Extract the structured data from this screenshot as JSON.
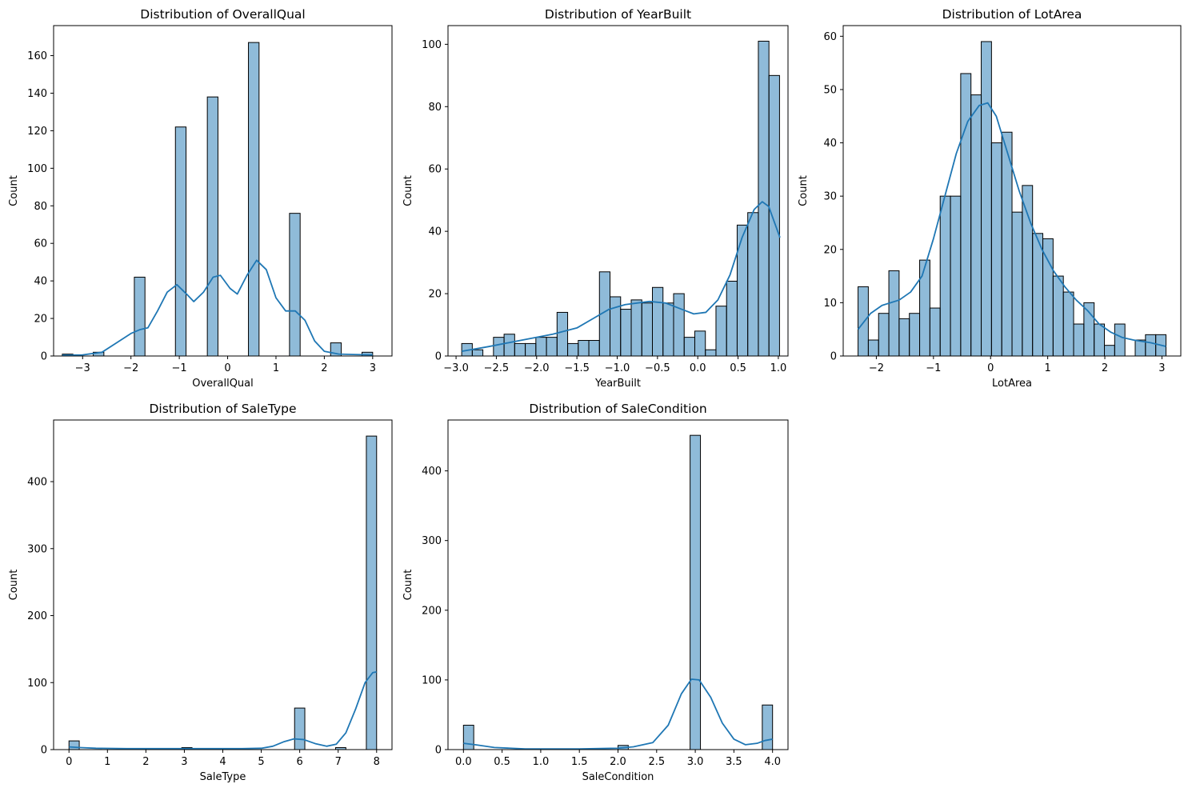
{
  "chart_data": [
    {
      "type": "bar",
      "title": "Distribution of OverallQual",
      "xlabel": "OverallQual",
      "ylabel": "Count",
      "xlim": [
        -3.6,
        3.4
      ],
      "ylim": [
        0,
        176
      ],
      "xticks": [
        -3,
        -2,
        -1,
        0,
        1,
        2,
        3
      ],
      "yticks": [
        0,
        20,
        40,
        60,
        80,
        100,
        120,
        140,
        160
      ],
      "bar_color": "#1f77b4",
      "bars": [
        {
          "x0": -3.42,
          "x1": -3.2,
          "count": 1
        },
        {
          "x0": -2.78,
          "x1": -2.56,
          "count": 2
        },
        {
          "x0": -1.93,
          "x1": -1.71,
          "count": 42
        },
        {
          "x0": -1.08,
          "x1": -0.86,
          "count": 122
        },
        {
          "x0": -0.42,
          "x1": -0.2,
          "count": 138
        },
        {
          "x0": 0.43,
          "x1": 0.65,
          "count": 167
        },
        {
          "x0": 1.28,
          "x1": 1.5,
          "count": 76
        },
        {
          "x0": 2.13,
          "x1": 2.35,
          "count": 7
        },
        {
          "x0": 2.78,
          "x1": 3.0,
          "count": 2
        }
      ],
      "kde": [
        [
          -3.42,
          0.4
        ],
        [
          -3.0,
          0.6
        ],
        [
          -2.6,
          2
        ],
        [
          -2.3,
          7
        ],
        [
          -2.0,
          12
        ],
        [
          -1.82,
          14
        ],
        [
          -1.65,
          15
        ],
        [
          -1.45,
          24
        ],
        [
          -1.25,
          34
        ],
        [
          -1.05,
          38
        ],
        [
          -0.85,
          33
        ],
        [
          -0.7,
          29
        ],
        [
          -0.5,
          34
        ],
        [
          -0.3,
          42
        ],
        [
          -0.15,
          43
        ],
        [
          0.05,
          36
        ],
        [
          0.2,
          33
        ],
        [
          0.4,
          43
        ],
        [
          0.6,
          51
        ],
        [
          0.8,
          46
        ],
        [
          1.0,
          31
        ],
        [
          1.2,
          24
        ],
        [
          1.4,
          24
        ],
        [
          1.6,
          19
        ],
        [
          1.8,
          8
        ],
        [
          2.0,
          2.5
        ],
        [
          2.3,
          1
        ],
        [
          2.6,
          0.8
        ],
        [
          3.0,
          0.6
        ]
      ]
    },
    {
      "type": "bar",
      "title": "Distribution of YearBuilt",
      "xlabel": "YearBuilt",
      "ylabel": "Count",
      "xlim": [
        -3.1,
        1.12
      ],
      "ylim": [
        0,
        106
      ],
      "xticks": [
        -3.0,
        -2.5,
        -2.0,
        -1.5,
        -1.0,
        -0.5,
        0.0,
        0.5,
        1.0
      ],
      "xtick_labels": [
        "−3.0",
        "−2.5",
        "−2.0",
        "−1.5",
        "−1.0",
        "−0.5",
        "0.0",
        "0.5",
        "1.0"
      ],
      "yticks": [
        0,
        20,
        40,
        60,
        80,
        100
      ],
      "bar_color": "#1f77b4",
      "hist": {
        "x0": -2.93,
        "bin_width": 0.1315,
        "counts": [
          4,
          2,
          0,
          6,
          7,
          4,
          4,
          6,
          6,
          14,
          4,
          5,
          5,
          27,
          19,
          15,
          18,
          17,
          22,
          17,
          20,
          6,
          8,
          2,
          16,
          24,
          42,
          46,
          101,
          90
        ]
      },
      "kde": [
        [
          -2.93,
          1.5
        ],
        [
          -2.6,
          3
        ],
        [
          -2.2,
          5
        ],
        [
          -1.8,
          7
        ],
        [
          -1.5,
          9
        ],
        [
          -1.3,
          12
        ],
        [
          -1.1,
          15
        ],
        [
          -0.9,
          16.5
        ],
        [
          -0.6,
          17.5
        ],
        [
          -0.4,
          17
        ],
        [
          -0.2,
          15
        ],
        [
          -0.05,
          13.5
        ],
        [
          0.1,
          14
        ],
        [
          0.25,
          18
        ],
        [
          0.4,
          26
        ],
        [
          0.55,
          38
        ],
        [
          0.7,
          47
        ],
        [
          0.8,
          49.5
        ],
        [
          0.88,
          48
        ],
        [
          0.95,
          43
        ],
        [
          1.02,
          38
        ]
      ]
    },
    {
      "type": "bar",
      "title": "Distribution of LotArea",
      "xlabel": "LotArea",
      "ylabel": "Count",
      "xlim": [
        -2.58,
        3.33
      ],
      "ylim": [
        0,
        62
      ],
      "xticks": [
        -2,
        -1,
        0,
        1,
        2,
        3
      ],
      "yticks": [
        0,
        10,
        20,
        30,
        40,
        50,
        60
      ],
      "bar_color": "#1f77b4",
      "hist": {
        "x0": -2.32,
        "bin_width": 0.1797,
        "counts": [
          13,
          3,
          8,
          16,
          7,
          8,
          18,
          9,
          30,
          30,
          53,
          49,
          59,
          40,
          42,
          27,
          32,
          23,
          22,
          15,
          12,
          6,
          10,
          6,
          2,
          6,
          0,
          3,
          4,
          4
        ]
      },
      "kde": [
        [
          -2.32,
          5
        ],
        [
          -2.1,
          8
        ],
        [
          -1.9,
          9.5
        ],
        [
          -1.6,
          10.5
        ],
        [
          -1.4,
          12
        ],
        [
          -1.2,
          15
        ],
        [
          -1.0,
          22
        ],
        [
          -0.8,
          30
        ],
        [
          -0.6,
          38
        ],
        [
          -0.4,
          44
        ],
        [
          -0.2,
          47
        ],
        [
          -0.05,
          47.5
        ],
        [
          0.1,
          45
        ],
        [
          0.3,
          38
        ],
        [
          0.5,
          31
        ],
        [
          0.7,
          25
        ],
        [
          0.9,
          20
        ],
        [
          1.1,
          16
        ],
        [
          1.3,
          13
        ],
        [
          1.5,
          10.5
        ],
        [
          1.7,
          8.5
        ],
        [
          1.9,
          6
        ],
        [
          2.1,
          4.5
        ],
        [
          2.3,
          3.5
        ],
        [
          2.5,
          3
        ],
        [
          2.8,
          2.5
        ],
        [
          3.07,
          1.8
        ]
      ]
    },
    {
      "type": "bar",
      "title": "Distribution of SaleType",
      "xlabel": "SaleType",
      "ylabel": "Count",
      "xlim": [
        -0.4,
        8.4
      ],
      "ylim": [
        0,
        492
      ],
      "xticks": [
        0,
        1,
        2,
        3,
        4,
        5,
        6,
        7,
        8
      ],
      "yticks": [
        0,
        100,
        200,
        300,
        400
      ],
      "bar_color": "#1f77b4",
      "bars": [
        {
          "x0": 0.0,
          "x1": 0.267,
          "count": 13
        },
        {
          "x0": 1.867,
          "x1": 2.133,
          "count": 1
        },
        {
          "x0": 2.933,
          "x1": 3.2,
          "count": 3
        },
        {
          "x0": 3.733,
          "x1": 4.0,
          "count": 1
        },
        {
          "x0": 5.867,
          "x1": 6.133,
          "count": 62
        },
        {
          "x0": 6.933,
          "x1": 7.2,
          "count": 3
        },
        {
          "x0": 7.733,
          "x1": 8.0,
          "count": 468
        }
      ],
      "kde": [
        [
          0.0,
          4
        ],
        [
          0.3,
          3
        ],
        [
          0.7,
          2
        ],
        [
          1.5,
          1.5
        ],
        [
          2.5,
          1.5
        ],
        [
          3.5,
          1.5
        ],
        [
          4.5,
          1.5
        ],
        [
          5.0,
          2
        ],
        [
          5.3,
          5
        ],
        [
          5.6,
          12
        ],
        [
          5.85,
          16
        ],
        [
          6.1,
          15
        ],
        [
          6.4,
          9
        ],
        [
          6.7,
          5
        ],
        [
          6.95,
          8
        ],
        [
          7.2,
          25
        ],
        [
          7.45,
          60
        ],
        [
          7.7,
          100
        ],
        [
          7.9,
          115
        ],
        [
          8.0,
          116
        ]
      ]
    },
    {
      "type": "bar",
      "title": "Distribution of SaleCondition",
      "xlabel": "SaleCondition",
      "ylabel": "Count",
      "xlim": [
        -0.2,
        4.2
      ],
      "ylim": [
        0,
        473
      ],
      "xticks": [
        0.0,
        0.5,
        1.0,
        1.5,
        2.0,
        2.5,
        3.0,
        3.5,
        4.0
      ],
      "xtick_labels": [
        "0.0",
        "0.5",
        "1.0",
        "1.5",
        "2.0",
        "2.5",
        "3.0",
        "3.5",
        "4.0"
      ],
      "yticks": [
        0,
        100,
        200,
        300,
        400
      ],
      "bar_color": "#1f77b4",
      "bars": [
        {
          "x0": 0.0,
          "x1": 0.133,
          "count": 35
        },
        {
          "x0": 2.0,
          "x1": 2.133,
          "count": 6
        },
        {
          "x0": 2.933,
          "x1": 3.067,
          "count": 451
        },
        {
          "x0": 3.867,
          "x1": 4.0,
          "count": 64
        }
      ],
      "kde": [
        [
          0.0,
          9
        ],
        [
          0.15,
          7
        ],
        [
          0.4,
          3
        ],
        [
          0.8,
          1
        ],
        [
          1.5,
          1
        ],
        [
          2.0,
          2
        ],
        [
          2.2,
          4
        ],
        [
          2.45,
          10
        ],
        [
          2.65,
          35
        ],
        [
          2.82,
          80
        ],
        [
          2.95,
          101
        ],
        [
          3.05,
          100
        ],
        [
          3.2,
          75
        ],
        [
          3.35,
          38
        ],
        [
          3.5,
          15
        ],
        [
          3.65,
          7
        ],
        [
          3.8,
          9
        ],
        [
          3.9,
          13
        ],
        [
          4.0,
          15
        ]
      ]
    }
  ]
}
